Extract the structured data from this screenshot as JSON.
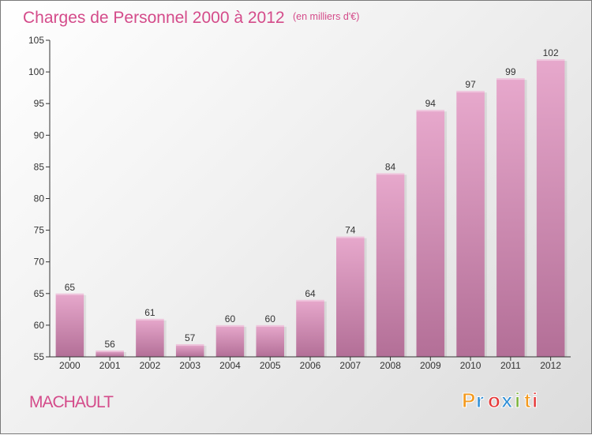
{
  "chart_data": {
    "type": "bar",
    "title": "Charges de Personnel 2000 à 2012",
    "subtitle": "(en milliers d'€)",
    "xlabel": "",
    "ylabel": "",
    "categories": [
      "2000",
      "2001",
      "2002",
      "2003",
      "2004",
      "2005",
      "2006",
      "2007",
      "2008",
      "2009",
      "2010",
      "2011",
      "2012"
    ],
    "values": [
      65,
      56,
      61,
      57,
      60,
      60,
      64,
      74,
      84,
      94,
      97,
      99,
      102
    ],
    "data_labels": [
      "65",
      "56",
      "61",
      "57",
      "60",
      "60",
      "64",
      "74",
      "84",
      "94",
      "97",
      "99",
      "102"
    ],
    "ylim": [
      55,
      105
    ],
    "y_ticks": [
      55,
      60,
      65,
      70,
      75,
      80,
      85,
      90,
      95,
      100,
      105
    ],
    "grid": false,
    "legend": "none"
  },
  "footer": {
    "commune": "MACHAULT",
    "brand_letters": [
      "P",
      "r",
      "o",
      "x",
      "i",
      "t",
      "i"
    ]
  },
  "colors": {
    "title": "#d44b8a",
    "commune": "#d44b8a",
    "bar_top": "#e7a8cc",
    "bar_bottom": "#b36f97",
    "axis": "#333333",
    "brand": [
      "#f39a1f",
      "#2f8fd6",
      "#e53a3a",
      "#2f8fd6",
      "#7bb33a",
      "#f39a1f",
      "#e53a3a"
    ]
  }
}
